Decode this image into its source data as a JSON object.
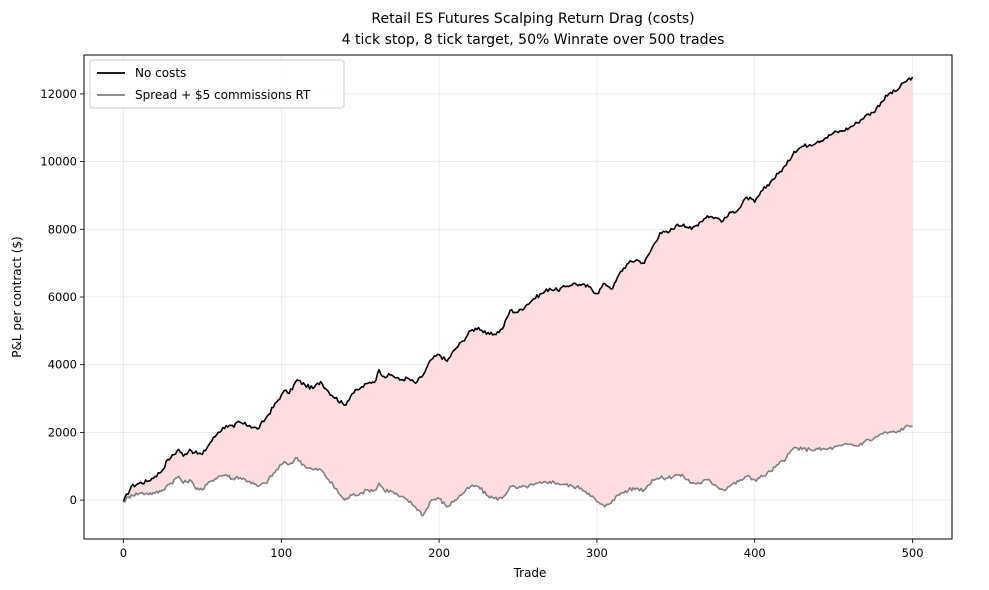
{
  "chart_data": {
    "type": "line",
    "title": "Retail ES Futures Scalping Return Drag (costs)",
    "subtitle": "4 tick stop, 8 tick target, 50% Winrate over 500 trades",
    "xlabel": "Trade",
    "ylabel": "P&L per contract ($)",
    "xlim": [
      -25,
      525
    ],
    "ylim": [
      -1150,
      13150
    ],
    "xticks": [
      0,
      100,
      200,
      300,
      400,
      500
    ],
    "yticks": [
      0,
      2000,
      4000,
      6000,
      8000,
      10000,
      12000
    ],
    "grid": true,
    "legend_position": "top-left",
    "fill_between": {
      "between": [
        "No costs",
        "Spread + $5 commissions RT"
      ],
      "color": "#ffdde0"
    },
    "series": [
      {
        "name": "No costs",
        "color": "#000000",
        "x": [
          0,
          5,
          10,
          15,
          20,
          25,
          28,
          30,
          35,
          38,
          42,
          45,
          50,
          55,
          60,
          65,
          70,
          72,
          80,
          85,
          90,
          100,
          103,
          105,
          110,
          115,
          120,
          125,
          130,
          140,
          145,
          150,
          155,
          160,
          162,
          165,
          170,
          175,
          180,
          185,
          190,
          195,
          200,
          205,
          210,
          215,
          220,
          225,
          230,
          235,
          240,
          245,
          250,
          255,
          260,
          265,
          270,
          275,
          280,
          285,
          290,
          295,
          300,
          305,
          310,
          315,
          320,
          325,
          330,
          335,
          340,
          345,
          350,
          355,
          360,
          365,
          370,
          375,
          380,
          385,
          390,
          395,
          400,
          405,
          410,
          415,
          420,
          425,
          430,
          435,
          440,
          445,
          450,
          455,
          460,
          465,
          470,
          475,
          480,
          485,
          490,
          495,
          500
        ],
        "y": [
          -50,
          400,
          500,
          550,
          700,
          900,
          1200,
          1250,
          1500,
          1300,
          1500,
          1400,
          1350,
          1700,
          2000,
          2200,
          2150,
          2300,
          2200,
          2100,
          2400,
          3100,
          3250,
          3150,
          3550,
          3400,
          3300,
          3500,
          3200,
          2800,
          3150,
          3300,
          3450,
          3550,
          3850,
          3650,
          3700,
          3550,
          3600,
          3450,
          3700,
          4150,
          4300,
          4100,
          4450,
          4700,
          5000,
          5100,
          4900,
          4900,
          5050,
          5600,
          5550,
          5750,
          5950,
          6100,
          6250,
          6200,
          6300,
          6400,
          6350,
          6300,
          6100,
          6400,
          6250,
          6750,
          7000,
          7100,
          7000,
          7450,
          7900,
          7900,
          8100,
          8150,
          8000,
          8200,
          8400,
          8350,
          8250,
          8500,
          8600,
          8950,
          8800,
          9150,
          9400,
          9650,
          9900,
          10300,
          10450,
          10500,
          10600,
          10700,
          10850,
          10900,
          11000,
          11150,
          11350,
          11450,
          11750,
          12000,
          12100,
          12350,
          12500
        ]
      },
      {
        "name": "Spread + $5 commissions RT",
        "color": "#808080",
        "x": [
          0,
          5,
          10,
          15,
          20,
          25,
          28,
          30,
          35,
          38,
          42,
          45,
          50,
          55,
          60,
          65,
          70,
          72,
          80,
          85,
          90,
          100,
          103,
          105,
          110,
          115,
          120,
          125,
          130,
          140,
          145,
          150,
          155,
          160,
          162,
          165,
          170,
          175,
          180,
          185,
          190,
          195,
          200,
          205,
          210,
          215,
          220,
          225,
          230,
          235,
          240,
          245,
          250,
          255,
          260,
          265,
          270,
          275,
          280,
          285,
          290,
          295,
          300,
          305,
          310,
          315,
          320,
          325,
          330,
          335,
          340,
          345,
          350,
          355,
          360,
          365,
          370,
          375,
          380,
          385,
          390,
          395,
          400,
          405,
          410,
          415,
          420,
          425,
          430,
          435,
          440,
          445,
          450,
          455,
          460,
          465,
          470,
          475,
          480,
          485,
          490,
          495,
          500
        ],
        "y": [
          -50,
          150,
          200,
          200,
          200,
          300,
          450,
          500,
          700,
          500,
          600,
          400,
          300,
          550,
          700,
          750,
          600,
          700,
          550,
          400,
          500,
          1050,
          1100,
          1050,
          1250,
          1000,
          900,
          900,
          600,
          0,
          150,
          200,
          300,
          300,
          500,
          300,
          250,
          100,
          0,
          -200,
          -450,
          0,
          50,
          -200,
          0,
          200,
          400,
          400,
          150,
          50,
          50,
          400,
          350,
          400,
          450,
          500,
          550,
          500,
          450,
          400,
          350,
          200,
          -50,
          -200,
          0,
          200,
          300,
          350,
          300,
          600,
          650,
          650,
          750,
          700,
          500,
          500,
          600,
          450,
          300,
          450,
          550,
          700,
          600,
          700,
          850,
          1050,
          1250,
          1550,
          1500,
          1500,
          1500,
          1500,
          1550,
          1600,
          1650,
          1600,
          1750,
          1800,
          1950,
          2000,
          2000,
          2150,
          2200
        ]
      }
    ]
  }
}
